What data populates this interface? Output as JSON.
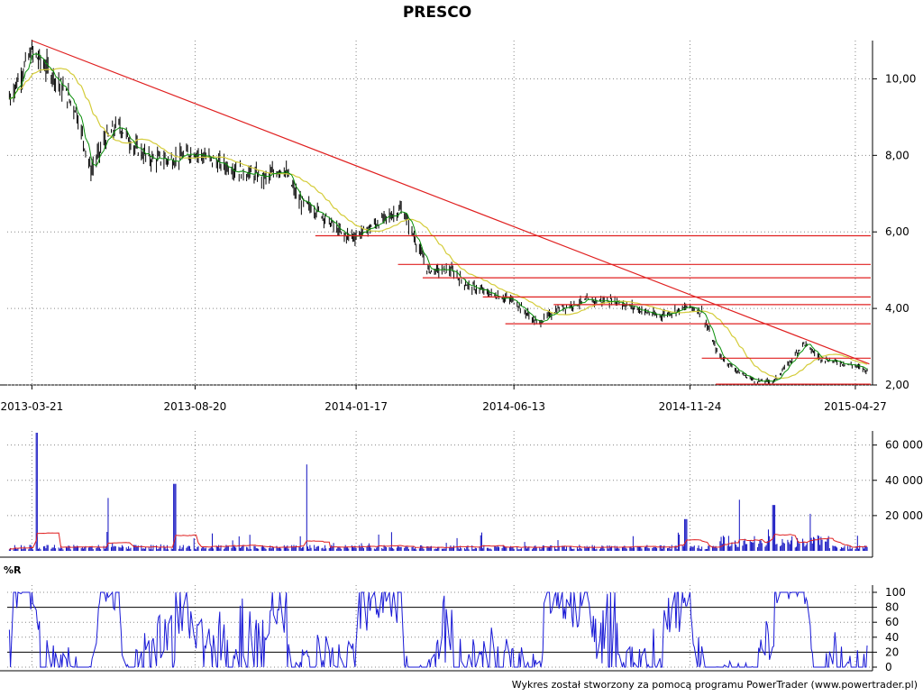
{
  "chart_data": [
    {
      "panel": "price",
      "type": "candlestick",
      "title": "PRESCO",
      "x_tick_labels": [
        "2013-03-21",
        "2013-08-20",
        "2014-01-17",
        "2014-06-13",
        "2014-11-24",
        "2015-04-27"
      ],
      "y_tick_labels": [
        "2,00",
        "4,00",
        "6,00",
        "8,00",
        "10,00"
      ],
      "ylim": [
        2.0,
        11.0
      ],
      "grid": true,
      "approx_close_path": [
        [
          "2013-02-28",
          9.5
        ],
        [
          "2013-03-21",
          10.7
        ],
        [
          "2013-04-10",
          10.1
        ],
        [
          "2013-05-01",
          9.2
        ],
        [
          "2013-05-15",
          7.6
        ],
        [
          "2013-05-28",
          8.4
        ],
        [
          "2013-06-10",
          8.8
        ],
        [
          "2013-06-25",
          8.2
        ],
        [
          "2013-07-10",
          7.9
        ],
        [
          "2013-08-01",
          7.9
        ],
        [
          "2013-08-20",
          8.1
        ],
        [
          "2013-09-10",
          7.8
        ],
        [
          "2013-10-01",
          7.6
        ],
        [
          "2013-10-25",
          7.4
        ],
        [
          "2013-11-10",
          7.7
        ],
        [
          "2013-11-25",
          6.8
        ],
        [
          "2013-12-15",
          6.5
        ],
        [
          "2014-01-05",
          5.9
        ],
        [
          "2014-01-17",
          5.9
        ],
        [
          "2014-02-10",
          6.3
        ],
        [
          "2014-03-01",
          6.6
        ],
        [
          "2014-03-10",
          6.0
        ],
        [
          "2014-03-25",
          5.0
        ],
        [
          "2014-04-15",
          5.0
        ],
        [
          "2014-05-01",
          4.6
        ],
        [
          "2014-05-20",
          4.4
        ],
        [
          "2014-06-13",
          4.2
        ],
        [
          "2014-07-05",
          3.6
        ],
        [
          "2014-07-25",
          4.0
        ],
        [
          "2014-08-20",
          4.2
        ],
        [
          "2014-09-15",
          4.2
        ],
        [
          "2014-10-05",
          4.0
        ],
        [
          "2014-10-25",
          3.8
        ],
        [
          "2014-11-24",
          4.05
        ],
        [
          "2014-12-05",
          3.9
        ],
        [
          "2014-12-20",
          2.8
        ],
        [
          "2015-01-10",
          2.3
        ],
        [
          "2015-01-25",
          2.1
        ],
        [
          "2015-02-10",
          2.1
        ],
        [
          "2015-02-25",
          2.6
        ],
        [
          "2015-03-10",
          3.1
        ],
        [
          "2015-03-25",
          2.7
        ],
        [
          "2015-04-27",
          2.5
        ],
        [
          "2015-05-10",
          2.35
        ]
      ],
      "moving_average_color": "#d4cc3a",
      "trendline": {
        "color": "#e02020",
        "from": [
          "2013-03-21",
          11.0
        ],
        "to": [
          "2015-05-10",
          2.55
        ]
      },
      "horizontal_levels": [
        5.9,
        5.15,
        4.8,
        4.3,
        4.1,
        3.6,
        2.7,
        2.02
      ],
      "level_color": "#e02020",
      "candle_color": "#000000",
      "ma_fast_color": "#0a8f0a"
    },
    {
      "panel": "volume",
      "type": "bar",
      "y_tick_labels": [
        "20 000",
        "40 000",
        "60 000"
      ],
      "ylim": [
        0,
        68000
      ],
      "bar_color": "#1010c0",
      "average_line_color": "#e02020",
      "approx_volume_peaks": [
        [
          "2013-03-25",
          67000
        ],
        [
          "2013-06-01",
          30000
        ],
        [
          "2013-08-01",
          38000
        ],
        [
          "2013-12-01",
          49000
        ],
        [
          "2014-11-20",
          18000
        ],
        [
          "2015-01-10",
          29000
        ],
        [
          "2015-02-10",
          26000
        ],
        [
          "2015-03-15",
          21000
        ]
      ]
    },
    {
      "panel": "williams-r",
      "type": "line",
      "label": "%R",
      "y_tick_labels": [
        "0",
        "20",
        "40",
        "60",
        "80",
        "100"
      ],
      "ylim": [
        0,
        100
      ],
      "reference_levels": [
        20,
        80
      ],
      "line_color": "#1a1ad6"
    }
  ],
  "footer": {
    "credit": "Wykres został stworzony za pomocą programu PowerTrader (www.powertrader.pl)"
  }
}
